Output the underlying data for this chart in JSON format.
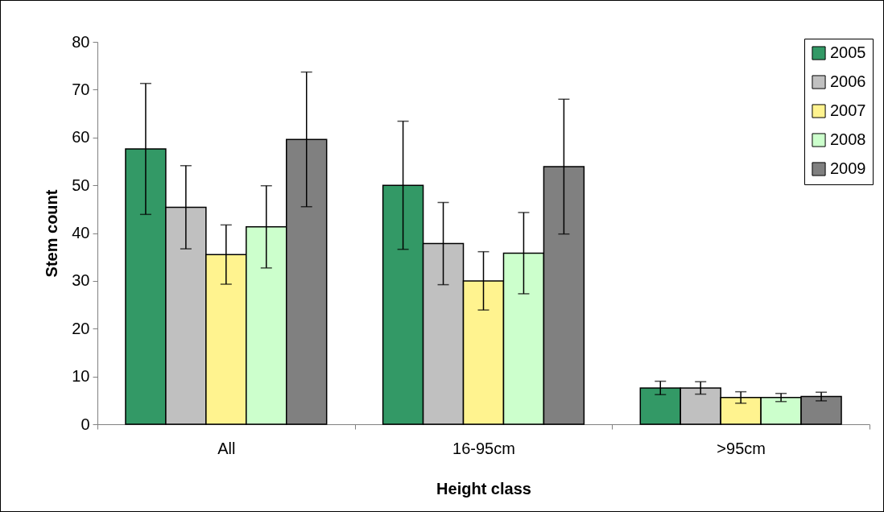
{
  "chart_data": {
    "type": "bar",
    "xlabel": "Height class",
    "ylabel": "Stem count",
    "categories": [
      "All",
      "16-95cm",
      ">95cm"
    ],
    "series": [
      {
        "name": "2005",
        "color": "#339966",
        "values": [
          57.6,
          50.0,
          7.6
        ],
        "errors": [
          13.7,
          13.4,
          1.4
        ]
      },
      {
        "name": "2006",
        "color": "#c0c0c0",
        "values": [
          45.4,
          37.8,
          7.6
        ],
        "errors": [
          8.7,
          8.6,
          1.3
        ]
      },
      {
        "name": "2007",
        "color": "#fff38f",
        "values": [
          35.5,
          30.0,
          5.6
        ],
        "errors": [
          6.2,
          6.1,
          1.2
        ]
      },
      {
        "name": "2008",
        "color": "#ccffcc",
        "values": [
          41.3,
          35.8,
          5.6
        ],
        "errors": [
          8.6,
          8.5,
          0.85
        ]
      },
      {
        "name": "2009",
        "color": "#808080",
        "values": [
          59.6,
          53.9,
          5.8
        ],
        "errors": [
          14.1,
          14.1,
          0.9
        ]
      }
    ],
    "ylim": [
      0,
      80
    ],
    "yticks": [
      0,
      10,
      20,
      30,
      40,
      50,
      60,
      70,
      80
    ],
    "legend": "top right"
  }
}
